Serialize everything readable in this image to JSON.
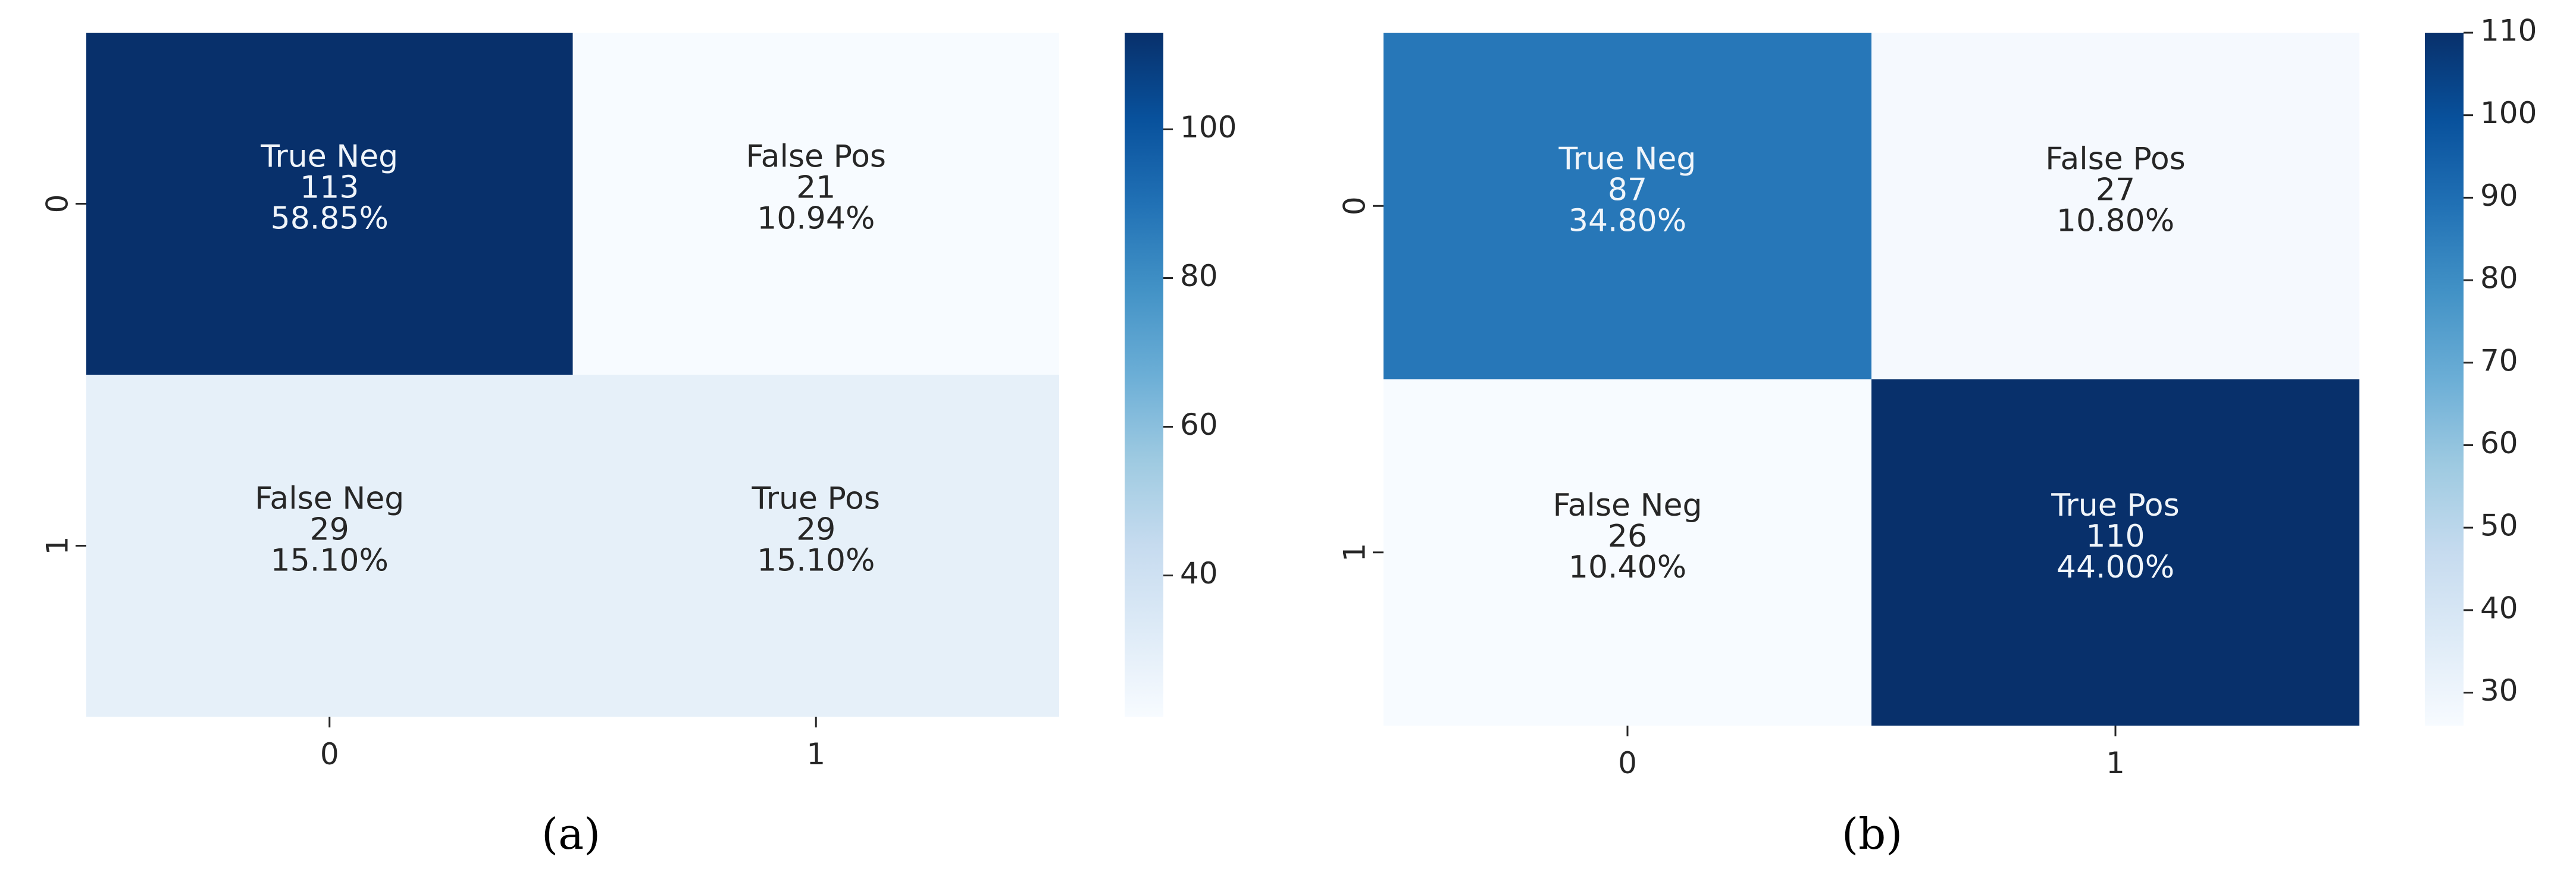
{
  "chart_data": [
    {
      "type": "heatmap",
      "panel_label": "(a)",
      "x_ticks": [
        "0",
        "1"
      ],
      "y_ticks": [
        "0",
        "1"
      ],
      "cells": [
        [
          {
            "name": "True Neg",
            "count": "113",
            "percent": "58.85%",
            "value": 113
          },
          {
            "name": "False Pos",
            "count": "21",
            "percent": "10.94%",
            "value": 21
          }
        ],
        [
          {
            "name": "False Neg",
            "count": "29",
            "percent": "15.10%",
            "value": 29
          },
          {
            "name": "True Pos",
            "count": "29",
            "percent": "15.10%",
            "value": 29
          }
        ]
      ],
      "colorbar": {
        "min": 21,
        "max": 113,
        "ticks": [
          40,
          60,
          80,
          100
        ],
        "colormap": "Blues"
      }
    },
    {
      "type": "heatmap",
      "panel_label": "(b)",
      "x_ticks": [
        "0",
        "1"
      ],
      "y_ticks": [
        "0",
        "1"
      ],
      "cells": [
        [
          {
            "name": "True Neg",
            "count": "87",
            "percent": "34.80%",
            "value": 87
          },
          {
            "name": "False Pos",
            "count": "27",
            "percent": "10.80%",
            "value": 27
          }
        ],
        [
          {
            "name": "False Neg",
            "count": "26",
            "percent": "10.40%",
            "value": 26
          },
          {
            "name": "True Pos",
            "count": "110",
            "percent": "44.00%",
            "value": 110
          }
        ]
      ],
      "colorbar": {
        "min": 26,
        "max": 110,
        "ticks": [
          30,
          40,
          50,
          60,
          70,
          80,
          90,
          100,
          110
        ],
        "colormap": "Blues"
      }
    }
  ]
}
